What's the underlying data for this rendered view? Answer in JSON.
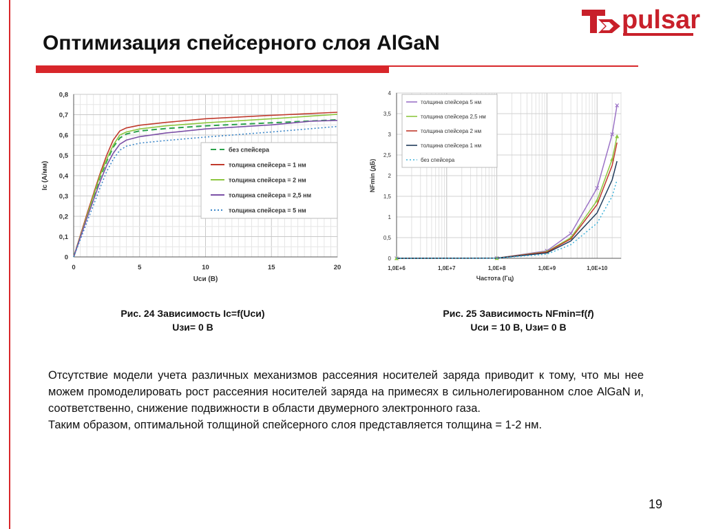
{
  "slide": {
    "title": "Оптимизация спейсерного слоя AlGaN",
    "logo_text": "pulsar",
    "page_number": "19",
    "caption1": {
      "line1": "Рис. 24 Зависимость Ic=f(Uси)",
      "line2": "Uзи= 0 В"
    },
    "caption2": {
      "line1_a": "Рис. 25 Зависимость NFmin=f(",
      "line1_f": "f",
      "line1_b": ")",
      "line2": "Uси = 10 В, Uзи= 0 В"
    },
    "paragraph1": "Отсутствие модели учета различных механизмов рассеяния носителей заряда приводит к тому, что мы нее можем промоделировать рост рассеяния носителей заряда на примесях в сильнолегированном слое AlGaN и, соответственно, снижение подвижности в области двумерного электронного газа.",
    "paragraph2": "Таким образом, оптимальной толщиной спейсерного слоя представляется толщина = 1-2 нм.",
    "colors": {
      "accent": "#d8262a"
    }
  },
  "chart_data": [
    {
      "type": "line",
      "xlabel": "Uси (В)",
      "ylabel": "Ic (А/мм)",
      "xlim": [
        0,
        20
      ],
      "ylim": [
        0,
        0.8
      ],
      "x_ticks": [
        "0",
        "5",
        "10",
        "15",
        "20"
      ],
      "y_ticks": [
        "0",
        "0,1",
        "0,2",
        "0,3",
        "0,4",
        "0,5",
        "0,6",
        "0,7",
        "0,8"
      ],
      "grid": true,
      "legend_position": "right",
      "series": [
        {
          "name": "без спейсера",
          "color": "#2aa24a",
          "dash": "8,5",
          "points": [
            [
              0,
              0
            ],
            [
              1,
              0.2
            ],
            [
              2,
              0.39
            ],
            [
              2.5,
              0.47
            ],
            [
              3,
              0.54
            ],
            [
              3.5,
              0.585
            ],
            [
              4,
              0.605
            ],
            [
              5,
              0.62
            ],
            [
              7,
              0.632
            ],
            [
              10,
              0.645
            ],
            [
              15,
              0.66
            ],
            [
              20,
              0.675
            ]
          ]
        },
        {
          "name": "толщина спейсера = 1 нм",
          "color": "#c0392b",
          "dash": "",
          "points": [
            [
              0,
              0
            ],
            [
              1,
              0.21
            ],
            [
              2,
              0.41
            ],
            [
              2.5,
              0.5
            ],
            [
              3,
              0.575
            ],
            [
              3.5,
              0.62
            ],
            [
              4,
              0.635
            ],
            [
              5,
              0.648
            ],
            [
              7,
              0.662
            ],
            [
              10,
              0.68
            ],
            [
              15,
              0.697
            ],
            [
              20,
              0.712
            ]
          ]
        },
        {
          "name": "толщина спейсера = 2 нм",
          "color": "#8dc63f",
          "dash": "",
          "points": [
            [
              0,
              0
            ],
            [
              1,
              0.2
            ],
            [
              2,
              0.4
            ],
            [
              2.5,
              0.48
            ],
            [
              3,
              0.55
            ],
            [
              3.5,
              0.6
            ],
            [
              4,
              0.615
            ],
            [
              5,
              0.63
            ],
            [
              7,
              0.645
            ],
            [
              10,
              0.66
            ],
            [
              15,
              0.68
            ],
            [
              20,
              0.702
            ]
          ]
        },
        {
          "name": "толщина спейсера = 2,5 нм",
          "color": "#7b4fa6",
          "dash": "",
          "points": [
            [
              0,
              0
            ],
            [
              1,
              0.19
            ],
            [
              2,
              0.37
            ],
            [
              2.5,
              0.45
            ],
            [
              3,
              0.51
            ],
            [
              3.5,
              0.555
            ],
            [
              4,
              0.575
            ],
            [
              5,
              0.592
            ],
            [
              7,
              0.61
            ],
            [
              10,
              0.63
            ],
            [
              15,
              0.65
            ],
            [
              18,
              0.668
            ],
            [
              20,
              0.672
            ]
          ]
        },
        {
          "name": "толщина спейсера = 5 нм",
          "color": "#3a86c8",
          "dash": "2,3",
          "points": [
            [
              0,
              0
            ],
            [
              1,
              0.17
            ],
            [
              2,
              0.34
            ],
            [
              2.5,
              0.42
            ],
            [
              3,
              0.48
            ],
            [
              3.5,
              0.525
            ],
            [
              4,
              0.545
            ],
            [
              5,
              0.56
            ],
            [
              7,
              0.573
            ],
            [
              10,
              0.59
            ],
            [
              15,
              0.615
            ],
            [
              20,
              0.642
            ]
          ]
        }
      ]
    },
    {
      "type": "line",
      "xlabel": "Частота (Гц)",
      "ylabel": "NFmin (дБ)",
      "x_scale": "log",
      "xlim": [
        1000000,
        30000000000
      ],
      "ylim": [
        0,
        4
      ],
      "x_ticks": [
        "1,0E+6",
        "1,0E+7",
        "1,0E+8",
        "1,0E+9",
        "1,0E+10"
      ],
      "y_ticks": [
        "0",
        "0,5",
        "1",
        "1,5",
        "2",
        "2,5",
        "3",
        "3,5",
        "4"
      ],
      "grid": true,
      "legend_position": "top-left",
      "series": [
        {
          "name": "толщина спейсера 5 нм",
          "color": "#9b72c6",
          "dash": "",
          "marker": "x",
          "points": [
            [
              1000000,
              0
            ],
            [
              100000000,
              0.005
            ],
            [
              1000000000,
              0.18
            ],
            [
              3000000000,
              0.6
            ],
            [
              10000000000,
              1.7
            ],
            [
              20000000000,
              3.0
            ],
            [
              25000000000,
              3.7
            ]
          ]
        },
        {
          "name": "толщина спейсера 2,5 нм",
          "color": "#8dc63f",
          "dash": "",
          "marker": "triangle",
          "points": [
            [
              1000000,
              0
            ],
            [
              100000000,
              0.005
            ],
            [
              1000000000,
              0.16
            ],
            [
              3000000000,
              0.5
            ],
            [
              10000000000,
              1.4
            ],
            [
              20000000000,
              2.4
            ],
            [
              25000000000,
              2.95
            ]
          ]
        },
        {
          "name": "толщина спейсера 2 нм",
          "color": "#c0392b",
          "dash": "",
          "points": [
            [
              1000000,
              0
            ],
            [
              100000000,
              0.005
            ],
            [
              1000000000,
              0.15
            ],
            [
              3000000000,
              0.47
            ],
            [
              10000000000,
              1.3
            ],
            [
              20000000000,
              2.25
            ],
            [
              25000000000,
              2.8
            ]
          ]
        },
        {
          "name": "толщина спейсера 1 нм",
          "color": "#1f3a5a",
          "dash": "",
          "points": [
            [
              1000000,
              0
            ],
            [
              100000000,
              0.004
            ],
            [
              1000000000,
              0.13
            ],
            [
              3000000000,
              0.42
            ],
            [
              10000000000,
              1.1
            ],
            [
              20000000000,
              1.9
            ],
            [
              25000000000,
              2.35
            ]
          ]
        },
        {
          "name": "без спейсера",
          "color": "#3ab0d8",
          "dash": "2,3",
          "points": [
            [
              1000000,
              0
            ],
            [
              100000000,
              0.003
            ],
            [
              1000000000,
              0.1
            ],
            [
              3000000000,
              0.33
            ],
            [
              10000000000,
              0.85
            ],
            [
              20000000000,
              1.5
            ],
            [
              25000000000,
              1.9
            ]
          ]
        }
      ]
    }
  ]
}
